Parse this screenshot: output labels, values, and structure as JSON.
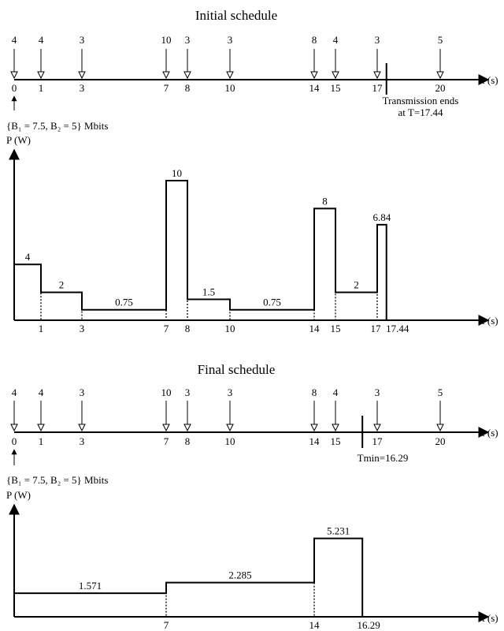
{
  "figure": {
    "sections": [
      {
        "id": "initial",
        "title": "Initial schedule",
        "arrivals": [
          {
            "t": 0,
            "label": "4"
          },
          {
            "t": 1,
            "label": "4"
          },
          {
            "t": 3,
            "label": "3"
          },
          {
            "t": 7,
            "label": "10"
          },
          {
            "t": 8,
            "label": "3"
          },
          {
            "t": 10,
            "label": "3"
          },
          {
            "t": 14,
            "label": "8"
          },
          {
            "t": 15,
            "label": "4"
          },
          {
            "t": 17,
            "label": "3"
          },
          {
            "t": 20,
            "label": "5"
          }
        ],
        "ticks": [
          "0",
          "1",
          "3",
          "7",
          "8",
          "10",
          "14",
          "15",
          "17",
          "20"
        ],
        "end_time": 17.44,
        "end_label_lines": [
          "Transmission ends",
          "at T=17.44"
        ],
        "t_axis_label": "t (s)",
        "initial_data_label": "{B₁ = 7.5, B₂ = 5}  Mbits",
        "power_axis_label": "P (W)",
        "power_t_axis_label": "t (s)",
        "power_segments": [
          {
            "t0": 0,
            "t1": 1,
            "p": 4,
            "label": "4"
          },
          {
            "t0": 1,
            "t1": 3,
            "p": 2,
            "label": "2"
          },
          {
            "t0": 3,
            "t1": 7,
            "p": 0.75,
            "label": "0.75"
          },
          {
            "t0": 7,
            "t1": 8,
            "p": 10,
            "label": "10"
          },
          {
            "t0": 8,
            "t1": 10,
            "p": 1.5,
            "label": "1.5"
          },
          {
            "t0": 10,
            "t1": 14,
            "p": 0.75,
            "label": "0.75"
          },
          {
            "t0": 14,
            "t1": 15,
            "p": 8,
            "label": "8"
          },
          {
            "t0": 15,
            "t1": 17,
            "p": 2,
            "label": "2"
          },
          {
            "t0": 17,
            "t1": 17.44,
            "p": 6.84,
            "label": "6.84"
          }
        ],
        "power_ticks": [
          {
            "t": 1,
            "label": "1"
          },
          {
            "t": 3,
            "label": "3"
          },
          {
            "t": 7,
            "label": "7"
          },
          {
            "t": 8,
            "label": "8"
          },
          {
            "t": 10,
            "label": "10"
          },
          {
            "t": 14,
            "label": "14"
          },
          {
            "t": 15,
            "label": "15"
          },
          {
            "t": 17,
            "label": "17"
          },
          {
            "t": 17.44,
            "label": "17.44"
          }
        ]
      },
      {
        "id": "final",
        "title": "Final schedule",
        "arrivals": [
          {
            "t": 0,
            "label": "4"
          },
          {
            "t": 1,
            "label": "4"
          },
          {
            "t": 3,
            "label": "3"
          },
          {
            "t": 7,
            "label": "10"
          },
          {
            "t": 8,
            "label": "3"
          },
          {
            "t": 10,
            "label": "3"
          },
          {
            "t": 14,
            "label": "8"
          },
          {
            "t": 15,
            "label": "4"
          },
          {
            "t": 17,
            "label": "3"
          },
          {
            "t": 20,
            "label": "5"
          }
        ],
        "ticks": [
          "0",
          "1",
          "3",
          "7",
          "8",
          "10",
          "14",
          "15",
          "17",
          "20"
        ],
        "end_time": 16.29,
        "end_label_lines": [
          "Tmin=16.29"
        ],
        "t_axis_label": "t (s)",
        "initial_data_label": "{B₁ = 7.5, B₂ = 5}  Mbits",
        "power_axis_label": "P (W)",
        "power_t_axis_label": "t (s)",
        "power_segments": [
          {
            "t0": 0,
            "t1": 7,
            "p": 1.571,
            "label": "1.571"
          },
          {
            "t0": 7,
            "t1": 14,
            "p": 2.285,
            "label": "2.285"
          },
          {
            "t0": 14,
            "t1": 16.29,
            "p": 5.231,
            "label": "5.231"
          }
        ],
        "power_ticks": [
          {
            "t": 7,
            "label": "7"
          },
          {
            "t": 14,
            "label": "14"
          },
          {
            "t": 16.29,
            "label": "16.29"
          }
        ]
      }
    ]
  }
}
